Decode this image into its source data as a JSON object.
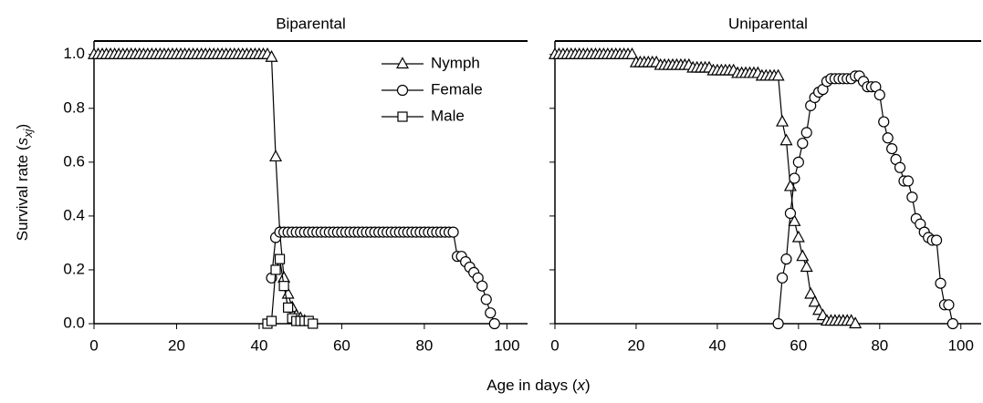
{
  "y_label": {
    "text": "Survival rate (",
    "var": "s",
    "sub": "xj",
    "close": ")"
  },
  "x_label": {
    "text": "Age in days (",
    "var": "x",
    "close": ")"
  },
  "chart_data": [
    {
      "type": "line",
      "title": "Biparental",
      "xlim": [
        0,
        105
      ],
      "ylim": [
        0,
        1.05
      ],
      "xticks": [
        0,
        20,
        40,
        60,
        80,
        100
      ],
      "yticks": [
        {
          "value": 0,
          "label": "0.0"
        },
        0.2,
        0.4,
        0.6,
        0.8,
        {
          "value": 1,
          "label": "1.0"
        }
      ],
      "legend": "upper right",
      "series": [
        {
          "name": "Nymph",
          "marker": "triangle",
          "color": "#000000",
          "x": [
            0,
            1,
            2,
            3,
            4,
            5,
            6,
            7,
            8,
            9,
            10,
            11,
            12,
            13,
            14,
            15,
            16,
            17,
            18,
            19,
            20,
            21,
            22,
            23,
            24,
            25,
            26,
            27,
            28,
            29,
            30,
            31,
            32,
            33,
            34,
            35,
            36,
            37,
            38,
            39,
            40,
            41,
            42,
            43,
            44,
            45,
            46,
            47,
            48,
            49,
            50,
            51
          ],
          "values": [
            1,
            1,
            1,
            1,
            1,
            1,
            1,
            1,
            1,
            1,
            1,
            1,
            1,
            1,
            1,
            1,
            1,
            1,
            1,
            1,
            1,
            1,
            1,
            1,
            1,
            1,
            1,
            1,
            1,
            1,
            1,
            1,
            1,
            1,
            1,
            1,
            1,
            1,
            1,
            1,
            1,
            1,
            1,
            0.99,
            0.62,
            0.34,
            0.17,
            0.11,
            0.06,
            0.03,
            0.02,
            0.01
          ]
        },
        {
          "name": "Female",
          "marker": "circle",
          "color": "#000000",
          "x": [
            43,
            44,
            45,
            46,
            47,
            48,
            49,
            50,
            51,
            52,
            53,
            54,
            55,
            56,
            57,
            58,
            59,
            60,
            61,
            62,
            63,
            64,
            65,
            66,
            67,
            68,
            69,
            70,
            71,
            72,
            73,
            74,
            75,
            76,
            77,
            78,
            79,
            80,
            81,
            82,
            83,
            84,
            85,
            86,
            87,
            88,
            89,
            90,
            91,
            92,
            93,
            94,
            95,
            96,
            97
          ],
          "values": [
            0.17,
            0.32,
            0.34,
            0.34,
            0.34,
            0.34,
            0.34,
            0.34,
            0.34,
            0.34,
            0.34,
            0.34,
            0.34,
            0.34,
            0.34,
            0.34,
            0.34,
            0.34,
            0.34,
            0.34,
            0.34,
            0.34,
            0.34,
            0.34,
            0.34,
            0.34,
            0.34,
            0.34,
            0.34,
            0.34,
            0.34,
            0.34,
            0.34,
            0.34,
            0.34,
            0.34,
            0.34,
            0.34,
            0.34,
            0.34,
            0.34,
            0.34,
            0.34,
            0.34,
            0.34,
            0.25,
            0.25,
            0.23,
            0.21,
            0.19,
            0.17,
            0.14,
            0.09,
            0.04,
            0
          ]
        },
        {
          "name": "Male",
          "marker": "square",
          "color": "#000000",
          "x": [
            42,
            43,
            44,
            45,
            46,
            47,
            48,
            49,
            50,
            51,
            52,
            53
          ],
          "values": [
            0,
            0.01,
            0.2,
            0.24,
            0.14,
            0.06,
            0.02,
            0.01,
            0.01,
            0.01,
            0.01,
            0
          ]
        }
      ]
    },
    {
      "type": "line",
      "title": "Uniparental",
      "xlim": [
        0,
        105
      ],
      "ylim": [
        0,
        1.05
      ],
      "xticks": [
        0,
        20,
        40,
        60,
        80,
        100
      ],
      "series": [
        {
          "marker": "triangle",
          "color": "#000000",
          "x": [
            0,
            1,
            2,
            3,
            4,
            5,
            6,
            7,
            8,
            9,
            10,
            11,
            12,
            13,
            14,
            15,
            16,
            17,
            18,
            19,
            20,
            21,
            22,
            23,
            24,
            25,
            26,
            27,
            28,
            29,
            30,
            31,
            32,
            33,
            34,
            35,
            36,
            37,
            38,
            39,
            40,
            41,
            42,
            43,
            44,
            45,
            46,
            47,
            48,
            49,
            50,
            51,
            52,
            53,
            54,
            55,
            56,
            57,
            58,
            59,
            60,
            61,
            62,
            63,
            64,
            65,
            66,
            67,
            68,
            69,
            70,
            71,
            72,
            73,
            74
          ],
          "values": [
            1,
            1,
            1,
            1,
            1,
            1,
            1,
            1,
            1,
            1,
            1,
            1,
            1,
            1,
            1,
            1,
            1,
            1,
            1,
            1,
            0.97,
            0.97,
            0.97,
            0.97,
            0.97,
            0.97,
            0.96,
            0.96,
            0.96,
            0.96,
            0.96,
            0.96,
            0.96,
            0.96,
            0.95,
            0.95,
            0.95,
            0.95,
            0.95,
            0.94,
            0.94,
            0.94,
            0.94,
            0.94,
            0.94,
            0.93,
            0.93,
            0.93,
            0.93,
            0.93,
            0.93,
            0.92,
            0.92,
            0.92,
            0.92,
            0.92,
            0.75,
            0.68,
            0.51,
            0.38,
            0.32,
            0.25,
            0.21,
            0.11,
            0.08,
            0.05,
            0.03,
            0.01,
            0.01,
            0.01,
            0.01,
            0.01,
            0.01,
            0.01,
            0
          ]
        },
        {
          "marker": "circle",
          "color": "#000000",
          "x": [
            55,
            56,
            57,
            58,
            59,
            60,
            61,
            62,
            63,
            64,
            65,
            66,
            67,
            68,
            69,
            70,
            71,
            72,
            73,
            74,
            75,
            76,
            77,
            78,
            79,
            80,
            81,
            82,
            83,
            84,
            85,
            86,
            87,
            88,
            89,
            90,
            91,
            92,
            93,
            94,
            95,
            96,
            97,
            98
          ],
          "values": [
            0,
            0.17,
            0.24,
            0.41,
            0.54,
            0.6,
            0.67,
            0.71,
            0.81,
            0.84,
            0.86,
            0.87,
            0.9,
            0.91,
            0.91,
            0.91,
            0.91,
            0.91,
            0.91,
            0.92,
            0.92,
            0.9,
            0.88,
            0.88,
            0.88,
            0.85,
            0.75,
            0.69,
            0.65,
            0.61,
            0.58,
            0.53,
            0.53,
            0.47,
            0.39,
            0.37,
            0.34,
            0.32,
            0.31,
            0.31,
            0.15,
            0.07,
            0.07,
            0
          ]
        }
      ]
    }
  ]
}
